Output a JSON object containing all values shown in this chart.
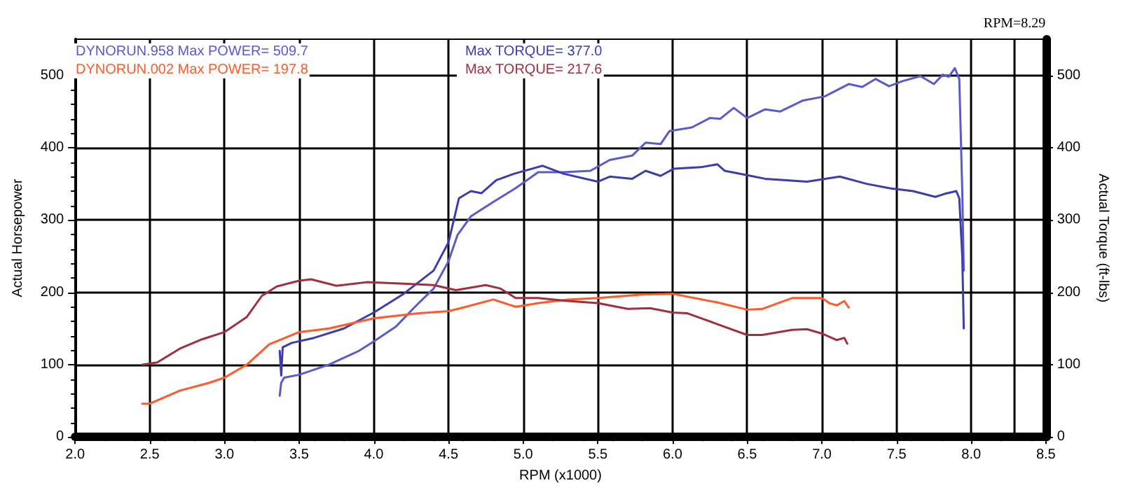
{
  "chart_data": {
    "type": "line",
    "xlabel": "RPM (x1000)",
    "ylabel": "Actual Horsepower",
    "y2label": "Actual Torque (ft-lbs)",
    "xlim": [
      2,
      8.5
    ],
    "xticks": [
      {
        "value": 2,
        "label": "2.0"
      },
      2.5,
      {
        "value": 3,
        "label": "3.0"
      },
      3.5,
      {
        "value": 4,
        "label": "4.0"
      },
      4.5,
      {
        "value": 5,
        "label": "5.0"
      },
      5.5,
      {
        "value": 6,
        "label": "6.0"
      },
      6.5,
      {
        "value": 7,
        "label": "7.0"
      },
      7.5,
      {
        "value": 8,
        "label": "8.0"
      },
      8.5
    ],
    "ylim": [
      0,
      550
    ],
    "yticks": [
      0,
      100,
      200,
      300,
      400,
      500
    ],
    "y2lim": [
      0,
      550
    ],
    "y2ticks": [
      0,
      100,
      200,
      300,
      400,
      500
    ],
    "grid": true,
    "legend": "top left",
    "marker": "none",
    "line_style": "solid",
    "ref_lines": [
      {
        "axis": "x",
        "value": 8.29,
        "label": "RPM=8.29",
        "color": "#000000"
      }
    ],
    "series": [
      {
        "name": "DYNORUN.958 Max POWER= 509.7",
        "color": "#5a5acc",
        "x": [
          3.37,
          3.38,
          3.4,
          3.5,
          3.7,
          3.9,
          4.0,
          4.15,
          4.3,
          4.4,
          4.5,
          4.56,
          4.65,
          4.8,
          4.95,
          5.1,
          5.27,
          5.45,
          5.58,
          5.73,
          5.82,
          5.92,
          5.98,
          6.13,
          6.25,
          6.32,
          6.41,
          6.5,
          6.62,
          6.72,
          6.87,
          7.02,
          7.18,
          7.27,
          7.36,
          7.45,
          7.54,
          7.66,
          7.75,
          7.81,
          7.85,
          7.89,
          7.92,
          7.94,
          7.95
        ],
        "values": [
          57,
          75,
          82,
          86,
          100,
          119,
          132,
          153,
          185,
          205,
          243,
          279,
          305,
          325,
          344,
          366,
          366,
          368,
          383,
          389,
          407,
          405,
          423,
          428,
          441,
          440,
          455,
          441,
          453,
          450,
          465,
          471,
          488,
          484,
          495,
          485,
          492,
          499,
          488,
          501,
          498,
          510,
          495,
          340,
          230
        ]
      },
      {
        "name": "Max TORQUE= 377.0",
        "color": "#3c3cae",
        "x": [
          3.37,
          3.38,
          3.39,
          3.45,
          3.6,
          3.8,
          4.0,
          4.2,
          4.4,
          4.5,
          4.57,
          4.65,
          4.72,
          4.82,
          4.94,
          5.13,
          5.27,
          5.5,
          5.58,
          5.73,
          5.82,
          5.92,
          6.01,
          6.19,
          6.3,
          6.35,
          6.5,
          6.62,
          6.9,
          7.12,
          7.3,
          7.45,
          7.61,
          7.76,
          7.82,
          7.9,
          7.92,
          7.94,
          7.95
        ],
        "values": [
          119,
          85,
          124,
          130,
          137,
          150,
          172,
          198,
          230,
          269,
          330,
          340,
          337,
          355,
          364,
          375,
          364,
          353,
          360,
          357,
          368,
          361,
          371,
          373,
          377,
          368,
          362,
          357,
          353,
          360,
          350,
          344,
          340,
          332,
          336,
          340,
          330,
          250,
          150
        ]
      },
      {
        "name": "DYNORUN.002 Max POWER= 197.8",
        "color": "#ff5a2a",
        "x": [
          2.45,
          2.5,
          2.7,
          2.9,
          3.0,
          3.15,
          3.3,
          3.5,
          3.7,
          4.0,
          4.3,
          4.5,
          4.6,
          4.8,
          4.95,
          5.1,
          5.3,
          5.5,
          5.8,
          6.0,
          6.3,
          6.5,
          6.6,
          6.8,
          7.0,
          7.05,
          7.1,
          7.15,
          7.18
        ],
        "values": [
          46,
          46,
          64,
          75,
          82,
          100,
          128,
          145,
          150,
          164,
          171,
          174,
          179,
          190,
          180,
          185,
          190,
          192,
          197,
          198,
          186,
          176,
          177,
          192,
          192,
          185,
          182,
          188,
          179
        ]
      },
      {
        "name": "Max TORQUE= 217.6",
        "color": "#a03040",
        "x": [
          2.45,
          2.55,
          2.7,
          2.85,
          3.0,
          3.15,
          3.25,
          3.35,
          3.5,
          3.58,
          3.75,
          3.95,
          4.2,
          4.4,
          4.55,
          4.75,
          4.85,
          4.95,
          5.1,
          5.3,
          5.5,
          5.7,
          5.85,
          6.0,
          6.1,
          6.3,
          6.5,
          6.6,
          6.8,
          6.9,
          7.0,
          7.1,
          7.15,
          7.17
        ],
        "values": [
          100,
          103,
          122,
          135,
          145,
          166,
          195,
          208,
          216,
          218,
          209,
          214,
          212,
          210,
          203,
          210,
          205,
          192,
          192,
          188,
          185,
          177,
          178,
          172,
          171,
          156,
          141,
          141,
          148,
          149,
          143,
          134,
          137,
          129
        ]
      }
    ]
  }
}
